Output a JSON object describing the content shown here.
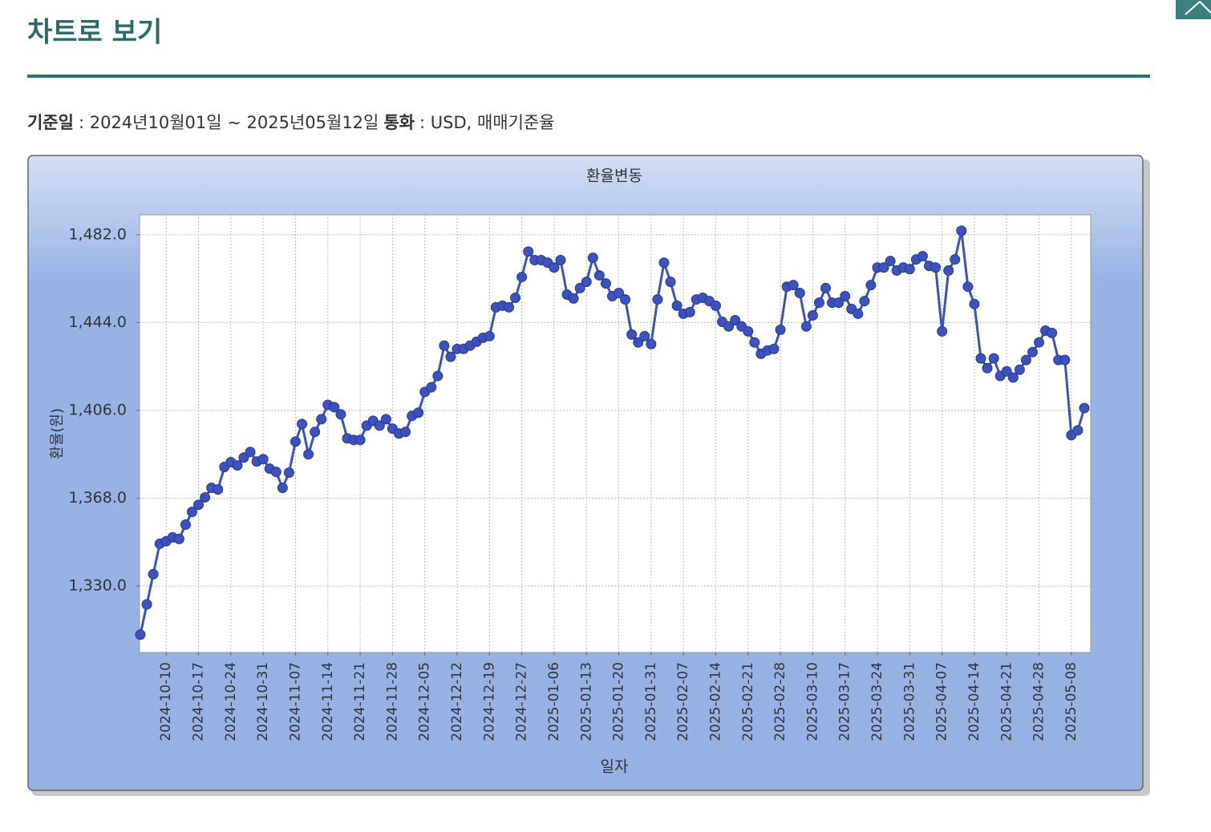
{
  "header": {
    "title": "차트로 보기"
  },
  "info": {
    "date_label": "기준일",
    "date_value": ": 2024년10월01일 ~ 2025년05월12일",
    "currency_label": "통화",
    "currency_value": ": USD, 매매기준율"
  },
  "chart_data": {
    "type": "line",
    "title": "환율변동",
    "x_label": "일자",
    "y_label": "환율(원)",
    "categories": [
      null,
      null,
      null,
      null,
      "2024-10-10",
      null,
      null,
      null,
      null,
      "2024-10-17",
      null,
      null,
      null,
      null,
      "2024-10-24",
      null,
      null,
      null,
      null,
      "2024-10-31",
      null,
      null,
      null,
      null,
      "2024-11-07",
      null,
      null,
      null,
      null,
      "2024-11-14",
      null,
      null,
      null,
      null,
      "2024-11-21",
      null,
      null,
      null,
      null,
      "2024-11-28",
      null,
      null,
      null,
      null,
      "2024-12-05",
      null,
      null,
      null,
      null,
      "2024-12-12",
      null,
      null,
      null,
      null,
      "2024-12-19",
      null,
      null,
      null,
      null,
      "2024-12-27",
      null,
      null,
      null,
      null,
      "2025-01-06",
      null,
      null,
      null,
      null,
      "2025-01-13",
      null,
      null,
      null,
      null,
      "2025-01-20",
      null,
      null,
      null,
      null,
      "2025-01-31",
      null,
      null,
      null,
      null,
      "2025-02-07",
      null,
      null,
      null,
      null,
      "2025-02-14",
      null,
      null,
      null,
      null,
      "2025-02-21",
      null,
      null,
      null,
      null,
      "2025-02-28",
      null,
      null,
      null,
      null,
      "2025-03-10",
      null,
      null,
      null,
      null,
      "2025-03-17",
      null,
      null,
      null,
      null,
      "2025-03-24",
      null,
      null,
      null,
      null,
      "2025-03-31",
      null,
      null,
      null,
      null,
      "2025-04-07",
      null,
      null,
      null,
      null,
      "2025-04-14",
      null,
      null,
      null,
      null,
      "2025-04-21",
      null,
      null,
      null,
      null,
      "2025-04-28",
      null,
      null,
      null,
      null,
      "2025-05-08",
      null,
      null
    ],
    "series": [
      {
        "name": "환율",
        "color": "#3d52bd",
        "values": [
          1309.0,
          1322.1,
          1335.2,
          1348.3,
          1349.4,
          1351.1,
          1350.4,
          1356.6,
          1362.1,
          1365.2,
          1368.4,
          1372.5,
          1371.8,
          1381.5,
          1383.6,
          1382.2,
          1385.6,
          1388.0,
          1383.9,
          1384.9,
          1380.8,
          1379.4,
          1372.5,
          1379.1,
          1392.5,
          1400.1,
          1387.0,
          1396.7,
          1402.2,
          1408.4,
          1407.4,
          1404.3,
          1393.9,
          1393.2,
          1393.2,
          1399.4,
          1401.5,
          1399.4,
          1402.2,
          1398.1,
          1396.0,
          1396.7,
          1403.6,
          1405.0,
          1414.0,
          1416.0,
          1420.9,
          1434.0,
          1429.2,
          1432.6,
          1432.6,
          1434.0,
          1435.7,
          1437.4,
          1438.1,
          1450.6,
          1451.3,
          1450.6,
          1454.7,
          1463.7,
          1474.7,
          1471.0,
          1471.0,
          1469.9,
          1467.8,
          1471.0,
          1456.1,
          1454.4,
          1458.9,
          1461.6,
          1472.0,
          1464.4,
          1460.9,
          1455.4,
          1456.8,
          1454.0,
          1438.8,
          1435.4,
          1438.1,
          1434.7,
          1454.0,
          1469.9,
          1461.6,
          1451.3,
          1447.8,
          1448.5,
          1454.0,
          1454.7,
          1453.3,
          1451.3,
          1444.3,
          1442.3,
          1445.0,
          1442.3,
          1440.2,
          1435.4,
          1430.5,
          1431.9,
          1432.6,
          1440.9,
          1459.5,
          1460.2,
          1456.8,
          1442.3,
          1447.1,
          1452.6,
          1458.9,
          1452.6,
          1452.6,
          1455.4,
          1449.9,
          1447.8,
          1453.3,
          1460.2,
          1467.8,
          1467.8,
          1470.6,
          1466.5,
          1467.8,
          1467.1,
          1471.3,
          1472.7,
          1468.5,
          1467.8,
          1440.2,
          1466.5,
          1471.3,
          1483.7,
          1459.5,
          1452.0,
          1428.5,
          1424.3,
          1428.5,
          1420.9,
          1422.9,
          1420.2,
          1423.6,
          1427.8,
          1431.2,
          1435.4,
          1440.5,
          1439.5,
          1427.8,
          1427.8,
          1395.3,
          1397.4,
          1407.0
        ]
      }
    ],
    "ylim": [
      1301.3,
      1490.6
    ],
    "yticks": [
      {
        "value": 1330,
        "label": "1,330.0"
      },
      {
        "value": 1368,
        "label": "1,368.0"
      },
      {
        "value": 1406,
        "label": "1,406.0"
      },
      {
        "value": 1444,
        "label": "1,444.0"
      },
      {
        "value": 1482,
        "label": "1,482.0"
      }
    ],
    "grid": true
  }
}
